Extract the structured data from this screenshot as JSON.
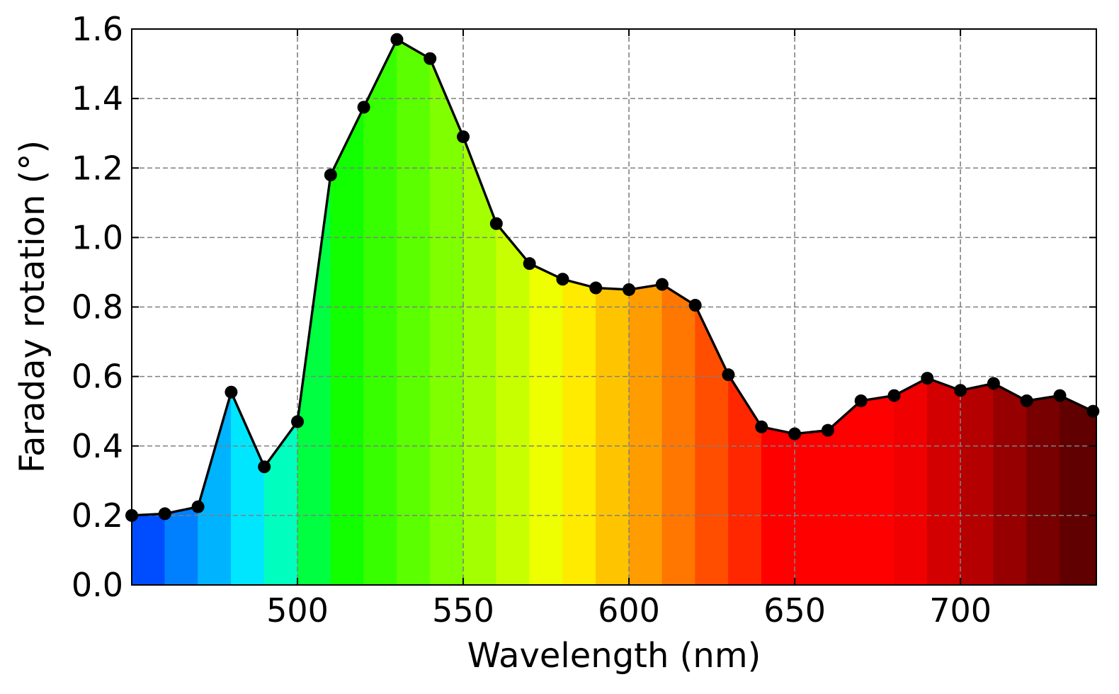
{
  "chart_data": {
    "type": "line",
    "xlabel": "Wavelength (nm)",
    "ylabel": "Faraday rotation (°)",
    "xlim": [
      450,
      741
    ],
    "ylim": [
      0.0,
      1.6
    ],
    "x_ticks": [
      500,
      550,
      600,
      650,
      700
    ],
    "x_tick_labels": [
      "500",
      "550",
      "600",
      "650",
      "700"
    ],
    "y_ticks": [
      0.0,
      0.2,
      0.4,
      0.6,
      0.8,
      1.0,
      1.2,
      1.4,
      1.6
    ],
    "y_tick_labels": [
      "0.0",
      "0.2",
      "0.4",
      "0.6",
      "0.8",
      "1.0",
      "1.2",
      "1.4",
      "1.6"
    ],
    "grid": true,
    "fill_under_curve": "spectral (wavelength color) bands",
    "series": [
      {
        "x": [
          450,
          460,
          470,
          480,
          490,
          500,
          510,
          520,
          530,
          540,
          550,
          560,
          570,
          580,
          590,
          600,
          610,
          620,
          630,
          640,
          650,
          660,
          670,
          680,
          690,
          700,
          710,
          720,
          730,
          740
        ],
        "y": [
          0.2,
          0.205,
          0.225,
          0.555,
          0.34,
          0.47,
          1.18,
          1.375,
          1.57,
          1.515,
          1.29,
          1.04,
          0.925,
          0.88,
          0.855,
          0.85,
          0.865,
          0.805,
          0.605,
          0.455,
          0.435,
          0.445,
          0.53,
          0.545,
          0.595,
          0.56,
          0.58,
          0.53,
          0.545,
          0.5
        ]
      }
    ]
  }
}
